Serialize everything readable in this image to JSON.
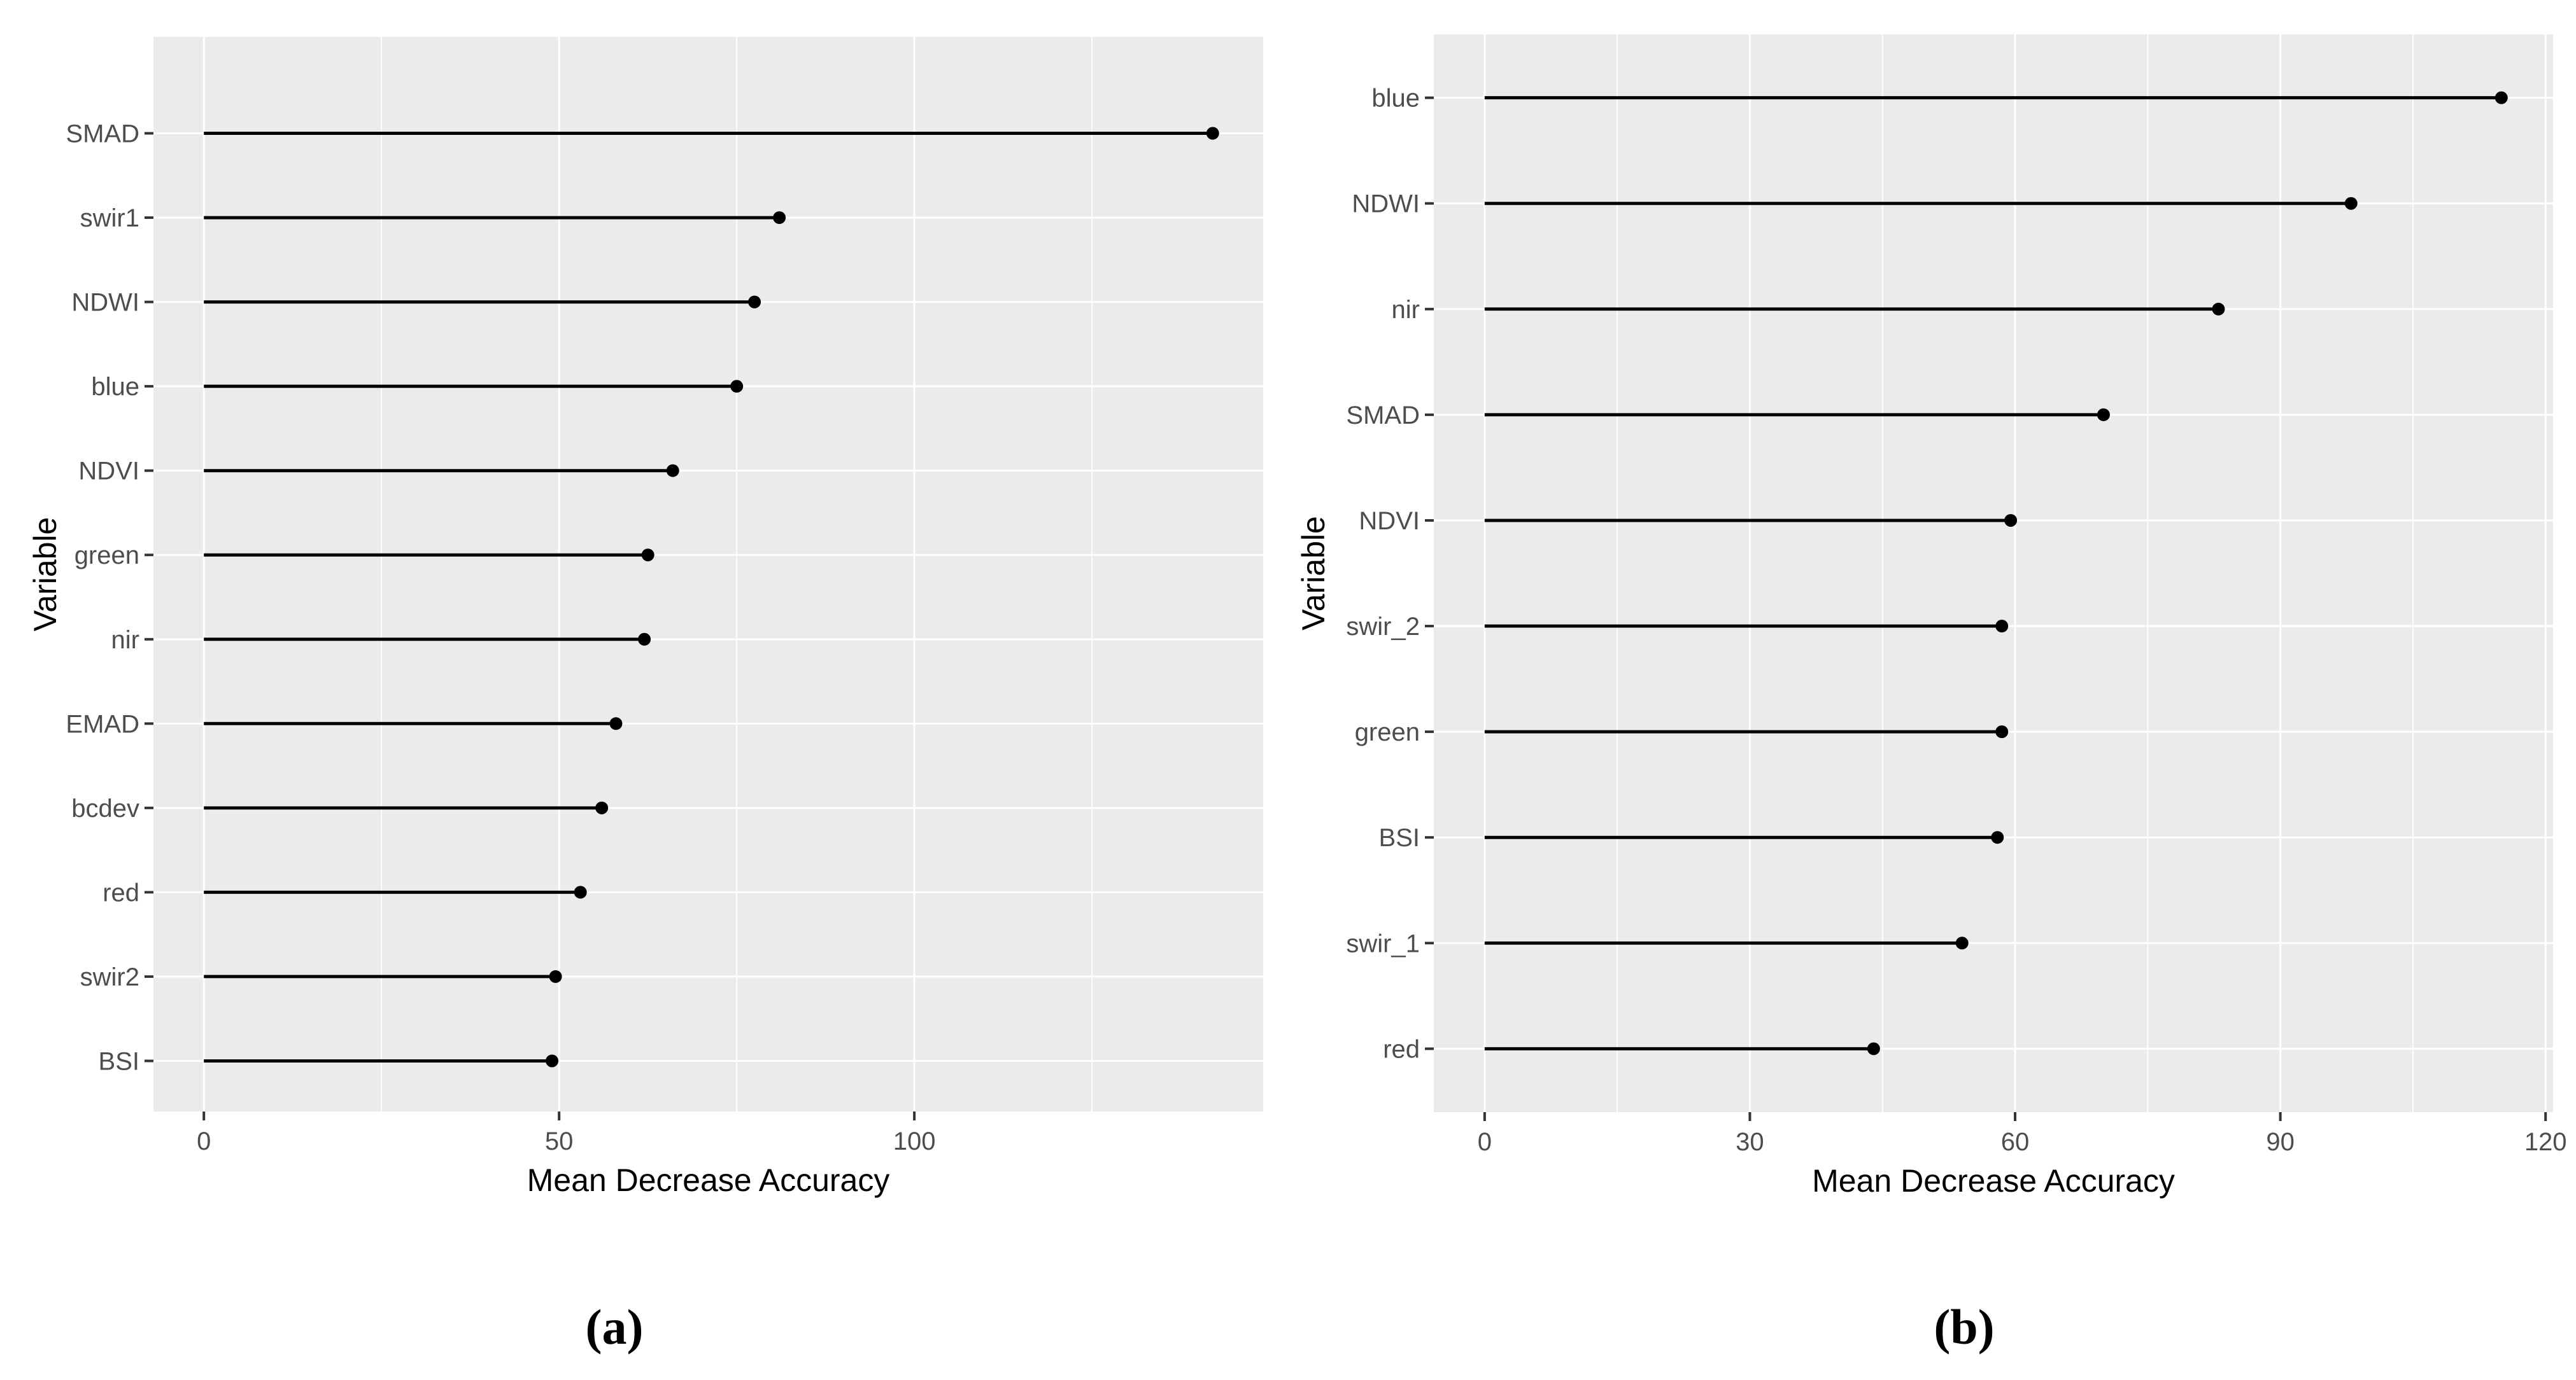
{
  "figure": {
    "background": "#ffffff",
    "caption_a": "(a)",
    "caption_b": "(b)"
  },
  "style": {
    "panel_bg": "#ebebeb",
    "grid_color": "#ffffff",
    "axis_text_color": "#4d4d4d",
    "axis_title_color": "#000000",
    "tick_color": "#333333",
    "lollipop_color": "#000000",
    "caption_color": "#000000"
  },
  "chart_data": [
    {
      "type": "lollipop",
      "title": "(a)",
      "xlabel": "Mean Decrease Accuracy",
      "ylabel": "Variable",
      "orientation": "horizontal",
      "grid": true,
      "legend": "none",
      "categories": [
        "SMAD",
        "swir1",
        "NDWI",
        "blue",
        "NDVI",
        "green",
        "nir",
        "EMAD",
        "bcdev",
        "red",
        "swir2",
        "BSI"
      ],
      "values": [
        142,
        81,
        77.5,
        75,
        66,
        62.5,
        62,
        58,
        56,
        53,
        49.5,
        49
      ],
      "x_ticks": [
        0,
        50,
        100
      ],
      "x_minor_step": 25,
      "xlim": [
        -7.1,
        149.1
      ]
    },
    {
      "type": "lollipop",
      "title": "(b)",
      "xlabel": "Mean Decrease Accuracy",
      "ylabel": "Variable",
      "orientation": "horizontal",
      "grid": true,
      "legend": "none",
      "categories": [
        "blue",
        "NDWI",
        "nir",
        "SMAD",
        "NDVI",
        "swir_2",
        "green",
        "BSI",
        "swir_1",
        "red"
      ],
      "values": [
        115,
        98,
        83,
        70,
        59.5,
        58.5,
        58.5,
        58,
        54,
        44
      ],
      "x_ticks": [
        0,
        30,
        60,
        90,
        120
      ],
      "x_minor_step": 15,
      "xlim": [
        -5.75,
        120.85
      ]
    }
  ]
}
